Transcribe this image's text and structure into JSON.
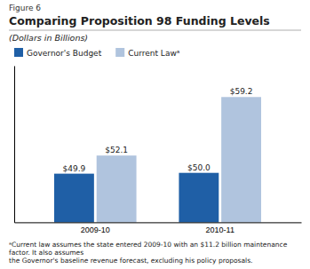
{
  "chart_data": {
    "type": "bar",
    "title": "Comparing Proposition 98 Funding Levels",
    "subtitle": "(Dollars in Billions)",
    "annotations": [
      "Figure 6",
      "ᵃCurrent law assumes the state entered 2009-10 with an $11.2 billion maintenance factor. It also assumes\nthe Governor's baseline revenue forecast, excluding his policy proposals."
    ],
    "categories": [
      "2009-10",
      "2010-11"
    ],
    "series": [
      {
        "name": "Governor's Budget",
        "color": "#1f5fa6",
        "values": [
          49.9,
          50.0
        ],
        "value_labels": [
          "$49.9",
          "$50.0"
        ]
      },
      {
        "name": "Current Lawᵃ",
        "color": "#b0c4de",
        "values": [
          52.1,
          59.2
        ],
        "value_labels": [
          "$52.1",
          "$59.2"
        ]
      }
    ],
    "ylim": [
      44,
      63
    ],
    "yticks": [],
    "tick_labels": "x",
    "data_labels": true,
    "legend": "top",
    "grid": false
  }
}
